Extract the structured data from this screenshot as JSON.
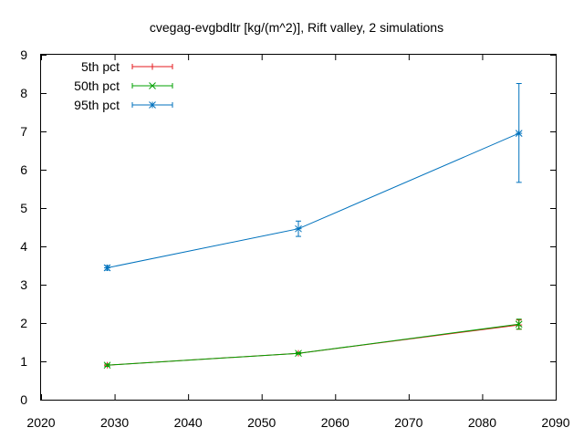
{
  "chart_data": {
    "type": "line",
    "title": "cvegag-evgbdltr [kg/(m^2)], Rift valley, 2 simulations",
    "xlabel": "",
    "ylabel": "",
    "xlim": [
      2020,
      2090
    ],
    "ylim": [
      0,
      9
    ],
    "xticks": [
      2020,
      2030,
      2040,
      2050,
      2060,
      2070,
      2080,
      2090
    ],
    "yticks": [
      0,
      1,
      2,
      3,
      4,
      5,
      6,
      7,
      8,
      9
    ],
    "grid": false,
    "legend_position": "top-left",
    "series": [
      {
        "name": "5th pct",
        "color": "#e41a1c",
        "marker": "plus",
        "x": [
          2029,
          2055,
          2085
        ],
        "y": [
          0.9,
          1.21,
          1.95
        ],
        "err_low": [
          0.87,
          1.19,
          1.84
        ],
        "err_high": [
          0.93,
          1.23,
          2.08
        ]
      },
      {
        "name": "50th pct",
        "color": "#00a000",
        "marker": "cross",
        "x": [
          2029,
          2055,
          2085
        ],
        "y": [
          0.9,
          1.21,
          1.97
        ],
        "err_low": [
          0.87,
          1.19,
          1.84
        ],
        "err_high": [
          0.93,
          1.23,
          2.1
        ]
      },
      {
        "name": "95th pct",
        "color": "#0072bd",
        "marker": "star",
        "x": [
          2029,
          2055,
          2085
        ],
        "y": [
          3.44,
          4.46,
          6.95
        ],
        "err_low": [
          3.38,
          4.26,
          5.67
        ],
        "err_high": [
          3.5,
          4.66,
          8.25
        ]
      }
    ]
  }
}
